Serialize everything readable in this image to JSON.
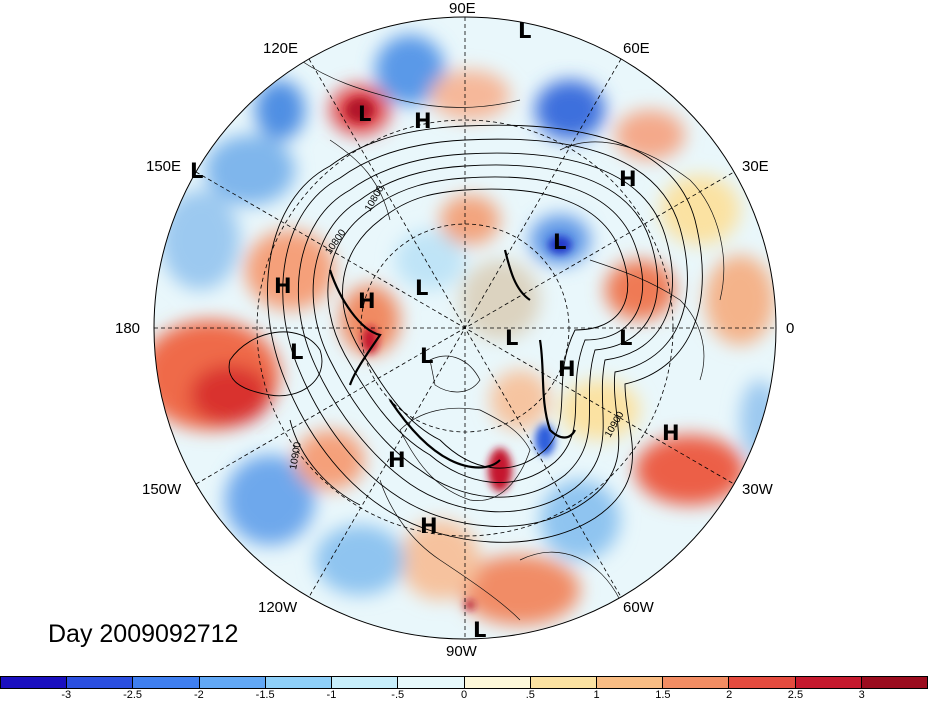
{
  "map": {
    "longitude_labels": [
      "90E",
      "60E",
      "30E",
      "0",
      "30W",
      "60W",
      "90W",
      "120W",
      "150W",
      "180",
      "150E",
      "120E"
    ],
    "contour_labels": [
      "10800",
      "10800",
      "10900",
      "10900"
    ],
    "pressure_centers": [
      "L",
      "L",
      "H",
      "H",
      "L",
      "H",
      "L",
      "H",
      "L",
      "L",
      "L",
      "L",
      "H",
      "L",
      "H",
      "H",
      "H",
      "L",
      "H"
    ],
    "timestamp_label": "Day 2009092712"
  },
  "colorbar": {
    "tick_labels": [
      "-3",
      "-2.5",
      "-2",
      "-1.5",
      "-1",
      "-.5",
      "0",
      ".5",
      "1",
      "1.5",
      "2",
      "2.5",
      "3"
    ],
    "colors": [
      "#1a0fbf",
      "#2b4fe0",
      "#3f7ff0",
      "#62a8f5",
      "#8fd0f9",
      "#c7eefb",
      "#e6f8fb",
      "#fcf7d9",
      "#fbe2a2",
      "#f9bd84",
      "#f28d63",
      "#e44b3e",
      "#c5192d",
      "#9b0c1e"
    ]
  }
}
